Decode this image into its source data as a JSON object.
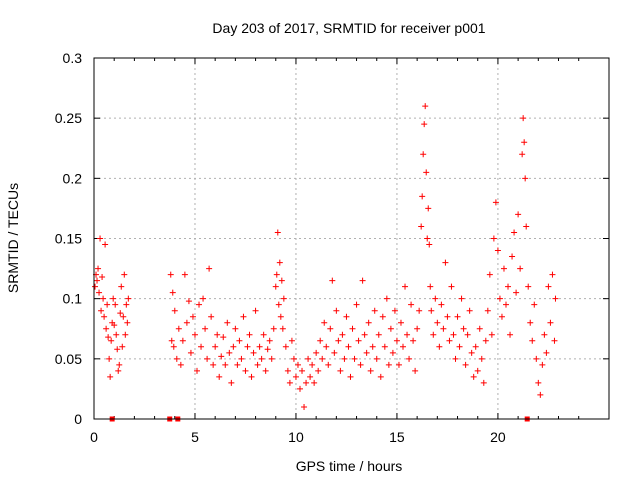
{
  "chart_data": {
    "type": "scatter",
    "title": "Day 203 of 2017, SRMTID for receiver p001",
    "xlabel": "GPS time / hours",
    "ylabel": "SRMTID / TECUs",
    "xlim": [
      0,
      25.5
    ],
    "ylim": [
      0,
      0.3
    ],
    "grid": true,
    "x_ticks": [
      0,
      5,
      10,
      15,
      20
    ],
    "x_tick_labels": [
      "0",
      "5",
      "10",
      "15",
      "20"
    ],
    "y_ticks": [
      0,
      0.05,
      0.1,
      0.15,
      0.2,
      0.25,
      0.3
    ],
    "y_tick_labels": [
      "0",
      "0.05",
      "0.1",
      "0.15",
      "0.2",
      "0.25",
      "0.3"
    ],
    "marker": "+",
    "color": "#ff0000",
    "series": [
      {
        "name": "SRMTID",
        "points": [
          [
            0.05,
            0.11
          ],
          [
            0.1,
            0.12
          ],
          [
            0.15,
            0.115
          ],
          [
            0.2,
            0.125
          ],
          [
            0.25,
            0.105
          ],
          [
            0.3,
            0.15
          ],
          [
            0.35,
            0.09
          ],
          [
            0.4,
            0.118
          ],
          [
            0.45,
            0.1
          ],
          [
            0.5,
            0.085
          ],
          [
            0.55,
            0.145
          ],
          [
            0.6,
            0.075
          ],
          [
            0.65,
            0.095
          ],
          [
            0.7,
            0.068
          ],
          [
            0.75,
            0.05
          ],
          [
            0.8,
            0.035
          ],
          [
            0.85,
            0.065
          ],
          [
            0.9,
            0.08
          ],
          [
            0.95,
            0.1
          ],
          [
            1.0,
            0.078
          ],
          [
            1.05,
            0.095
          ],
          [
            1.1,
            0.07
          ],
          [
            1.15,
            0.058
          ],
          [
            1.2,
            0.04
          ],
          [
            1.25,
            0.045
          ],
          [
            1.3,
            0.088
          ],
          [
            1.35,
            0.11
          ],
          [
            1.4,
            0.06
          ],
          [
            1.45,
            0.085
          ],
          [
            1.5,
            0.12
          ],
          [
            1.55,
            0.07
          ],
          [
            1.6,
            0.095
          ],
          [
            1.65,
            0.08
          ],
          [
            1.7,
            0.1
          ],
          [
            3.8,
            0.12
          ],
          [
            3.85,
            0.065
          ],
          [
            3.9,
            0.105
          ],
          [
            3.95,
            0.06
          ],
          [
            4.0,
            0.09
          ],
          [
            4.1,
            0.05
          ],
          [
            4.2,
            0.075
          ],
          [
            4.3,
            0.045
          ],
          [
            4.4,
            0.065
          ],
          [
            4.5,
            0.12
          ],
          [
            4.6,
            0.08
          ],
          [
            4.7,
            0.098
          ],
          [
            4.8,
            0.055
          ],
          [
            4.9,
            0.085
          ],
          [
            5.0,
            0.07
          ],
          [
            5.1,
            0.04
          ],
          [
            5.2,
            0.095
          ],
          [
            5.3,
            0.06
          ],
          [
            5.4,
            0.1
          ],
          [
            5.5,
            0.075
          ],
          [
            5.6,
            0.05
          ],
          [
            5.7,
            0.125
          ],
          [
            5.8,
            0.085
          ],
          [
            5.9,
            0.045
          ],
          [
            6.0,
            0.06
          ],
          [
            6.1,
            0.07
          ],
          [
            6.2,
            0.035
          ],
          [
            6.3,
            0.052
          ],
          [
            6.4,
            0.068
          ],
          [
            6.5,
            0.045
          ],
          [
            6.6,
            0.08
          ],
          [
            6.7,
            0.055
          ],
          [
            6.8,
            0.03
          ],
          [
            6.9,
            0.06
          ],
          [
            7.0,
            0.075
          ],
          [
            7.1,
            0.045
          ],
          [
            7.2,
            0.065
          ],
          [
            7.3,
            0.05
          ],
          [
            7.4,
            0.085
          ],
          [
            7.5,
            0.04
          ],
          [
            7.6,
            0.06
          ],
          [
            7.7,
            0.07
          ],
          [
            7.8,
            0.035
          ],
          [
            7.9,
            0.055
          ],
          [
            8.0,
            0.09
          ],
          [
            8.1,
            0.045
          ],
          [
            8.2,
            0.06
          ],
          [
            8.3,
            0.05
          ],
          [
            8.4,
            0.07
          ],
          [
            8.5,
            0.04
          ],
          [
            8.6,
            0.058
          ],
          [
            8.7,
            0.065
          ],
          [
            8.8,
            0.05
          ],
          [
            8.9,
            0.075
          ],
          [
            9.0,
            0.11
          ],
          [
            9.05,
            0.12
          ],
          [
            9.1,
            0.155
          ],
          [
            9.15,
            0.095
          ],
          [
            9.2,
            0.13
          ],
          [
            9.25,
            0.085
          ],
          [
            9.3,
            0.115
          ],
          [
            9.35,
            0.075
          ],
          [
            9.4,
            0.1
          ],
          [
            9.5,
            0.06
          ],
          [
            9.6,
            0.04
          ],
          [
            9.7,
            0.03
          ],
          [
            9.8,
            0.065
          ],
          [
            9.9,
            0.05
          ],
          [
            10.0,
            0.035
          ],
          [
            10.1,
            0.045
          ],
          [
            10.2,
            0.025
          ],
          [
            10.3,
            0.04
          ],
          [
            10.4,
            0.01
          ],
          [
            10.5,
            0.03
          ],
          [
            10.6,
            0.05
          ],
          [
            10.7,
            0.035
          ],
          [
            10.8,
            0.045
          ],
          [
            10.9,
            0.03
          ],
          [
            11.0,
            0.055
          ],
          [
            11.1,
            0.04
          ],
          [
            11.2,
            0.065
          ],
          [
            11.3,
            0.05
          ],
          [
            11.4,
            0.08
          ],
          [
            11.5,
            0.06
          ],
          [
            11.6,
            0.045
          ],
          [
            11.7,
            0.075
          ],
          [
            11.8,
            0.115
          ],
          [
            11.9,
            0.055
          ],
          [
            12.0,
            0.09
          ],
          [
            12.1,
            0.065
          ],
          [
            12.2,
            0.04
          ],
          [
            12.3,
            0.07
          ],
          [
            12.4,
            0.05
          ],
          [
            12.5,
            0.085
          ],
          [
            12.6,
            0.06
          ],
          [
            12.7,
            0.035
          ],
          [
            12.8,
            0.075
          ],
          [
            12.9,
            0.05
          ],
          [
            13.0,
            0.095
          ],
          [
            13.1,
            0.065
          ],
          [
            13.2,
            0.045
          ],
          [
            13.3,
            0.115
          ],
          [
            13.4,
            0.07
          ],
          [
            13.5,
            0.055
          ],
          [
            13.6,
            0.08
          ],
          [
            13.7,
            0.04
          ],
          [
            13.8,
            0.06
          ],
          [
            13.9,
            0.09
          ],
          [
            14.0,
            0.05
          ],
          [
            14.1,
            0.07
          ],
          [
            14.2,
            0.035
          ],
          [
            14.3,
            0.085
          ],
          [
            14.4,
            0.06
          ],
          [
            14.5,
            0.1
          ],
          [
            14.6,
            0.045
          ],
          [
            14.7,
            0.075
          ],
          [
            14.8,
            0.055
          ],
          [
            14.9,
            0.09
          ],
          [
            15.0,
            0.065
          ],
          [
            15.1,
            0.045
          ],
          [
            15.2,
            0.08
          ],
          [
            15.3,
            0.06
          ],
          [
            15.4,
            0.11
          ],
          [
            15.5,
            0.07
          ],
          [
            15.6,
            0.05
          ],
          [
            15.7,
            0.095
          ],
          [
            15.8,
            0.065
          ],
          [
            15.9,
            0.04
          ],
          [
            16.0,
            0.075
          ],
          [
            16.1,
            0.09
          ],
          [
            16.2,
            0.16
          ],
          [
            16.25,
            0.185
          ],
          [
            16.3,
            0.22
          ],
          [
            16.35,
            0.245
          ],
          [
            16.4,
            0.26
          ],
          [
            16.45,
            0.205
          ],
          [
            16.5,
            0.15
          ],
          [
            16.55,
            0.175
          ],
          [
            16.6,
            0.145
          ],
          [
            16.65,
            0.11
          ],
          [
            16.7,
            0.09
          ],
          [
            16.8,
            0.07
          ],
          [
            16.9,
            0.1
          ],
          [
            17.0,
            0.08
          ],
          [
            17.1,
            0.06
          ],
          [
            17.2,
            0.095
          ],
          [
            17.3,
            0.075
          ],
          [
            17.4,
            0.13
          ],
          [
            17.5,
            0.085
          ],
          [
            17.6,
            0.065
          ],
          [
            17.7,
            0.11
          ],
          [
            17.8,
            0.07
          ],
          [
            17.9,
            0.05
          ],
          [
            18.0,
            0.085
          ],
          [
            18.1,
            0.06
          ],
          [
            18.2,
            0.1
          ],
          [
            18.3,
            0.075
          ],
          [
            18.4,
            0.045
          ],
          [
            18.5,
            0.07
          ],
          [
            18.6,
            0.09
          ],
          [
            18.7,
            0.055
          ],
          [
            18.8,
            0.035
          ],
          [
            18.9,
            0.06
          ],
          [
            19.0,
            0.04
          ],
          [
            19.1,
            0.075
          ],
          [
            19.2,
            0.05
          ],
          [
            19.3,
            0.03
          ],
          [
            19.4,
            0.065
          ],
          [
            19.5,
            0.09
          ],
          [
            19.6,
            0.12
          ],
          [
            19.7,
            0.07
          ],
          [
            19.8,
            0.15
          ],
          [
            19.9,
            0.18
          ],
          [
            20.0,
            0.14
          ],
          [
            20.1,
            0.1
          ],
          [
            20.2,
            0.085
          ],
          [
            20.3,
            0.125
          ],
          [
            20.4,
            0.095
          ],
          [
            20.5,
            0.11
          ],
          [
            20.6,
            0.07
          ],
          [
            20.7,
            0.135
          ],
          [
            20.8,
            0.155
          ],
          [
            20.9,
            0.105
          ],
          [
            21.0,
            0.17
          ],
          [
            21.1,
            0.125
          ],
          [
            21.2,
            0.22
          ],
          [
            21.25,
            0.25
          ],
          [
            21.3,
            0.23
          ],
          [
            21.35,
            0.2
          ],
          [
            21.4,
            0.16
          ],
          [
            21.5,
            0.11
          ],
          [
            21.6,
            0.08
          ],
          [
            21.7,
            0.065
          ],
          [
            21.8,
            0.095
          ],
          [
            21.9,
            0.05
          ],
          [
            22.0,
            0.03
          ],
          [
            22.1,
            0.02
          ],
          [
            22.2,
            0.045
          ],
          [
            22.3,
            0.07
          ],
          [
            22.4,
            0.055
          ],
          [
            22.5,
            0.11
          ],
          [
            22.6,
            0.08
          ],
          [
            22.7,
            0.12
          ],
          [
            22.8,
            0.065
          ],
          [
            22.85,
            0.1
          ]
        ]
      }
    ],
    "zero_markers_x": [
      0.9,
      3.75,
      4.15,
      21.45
    ]
  }
}
